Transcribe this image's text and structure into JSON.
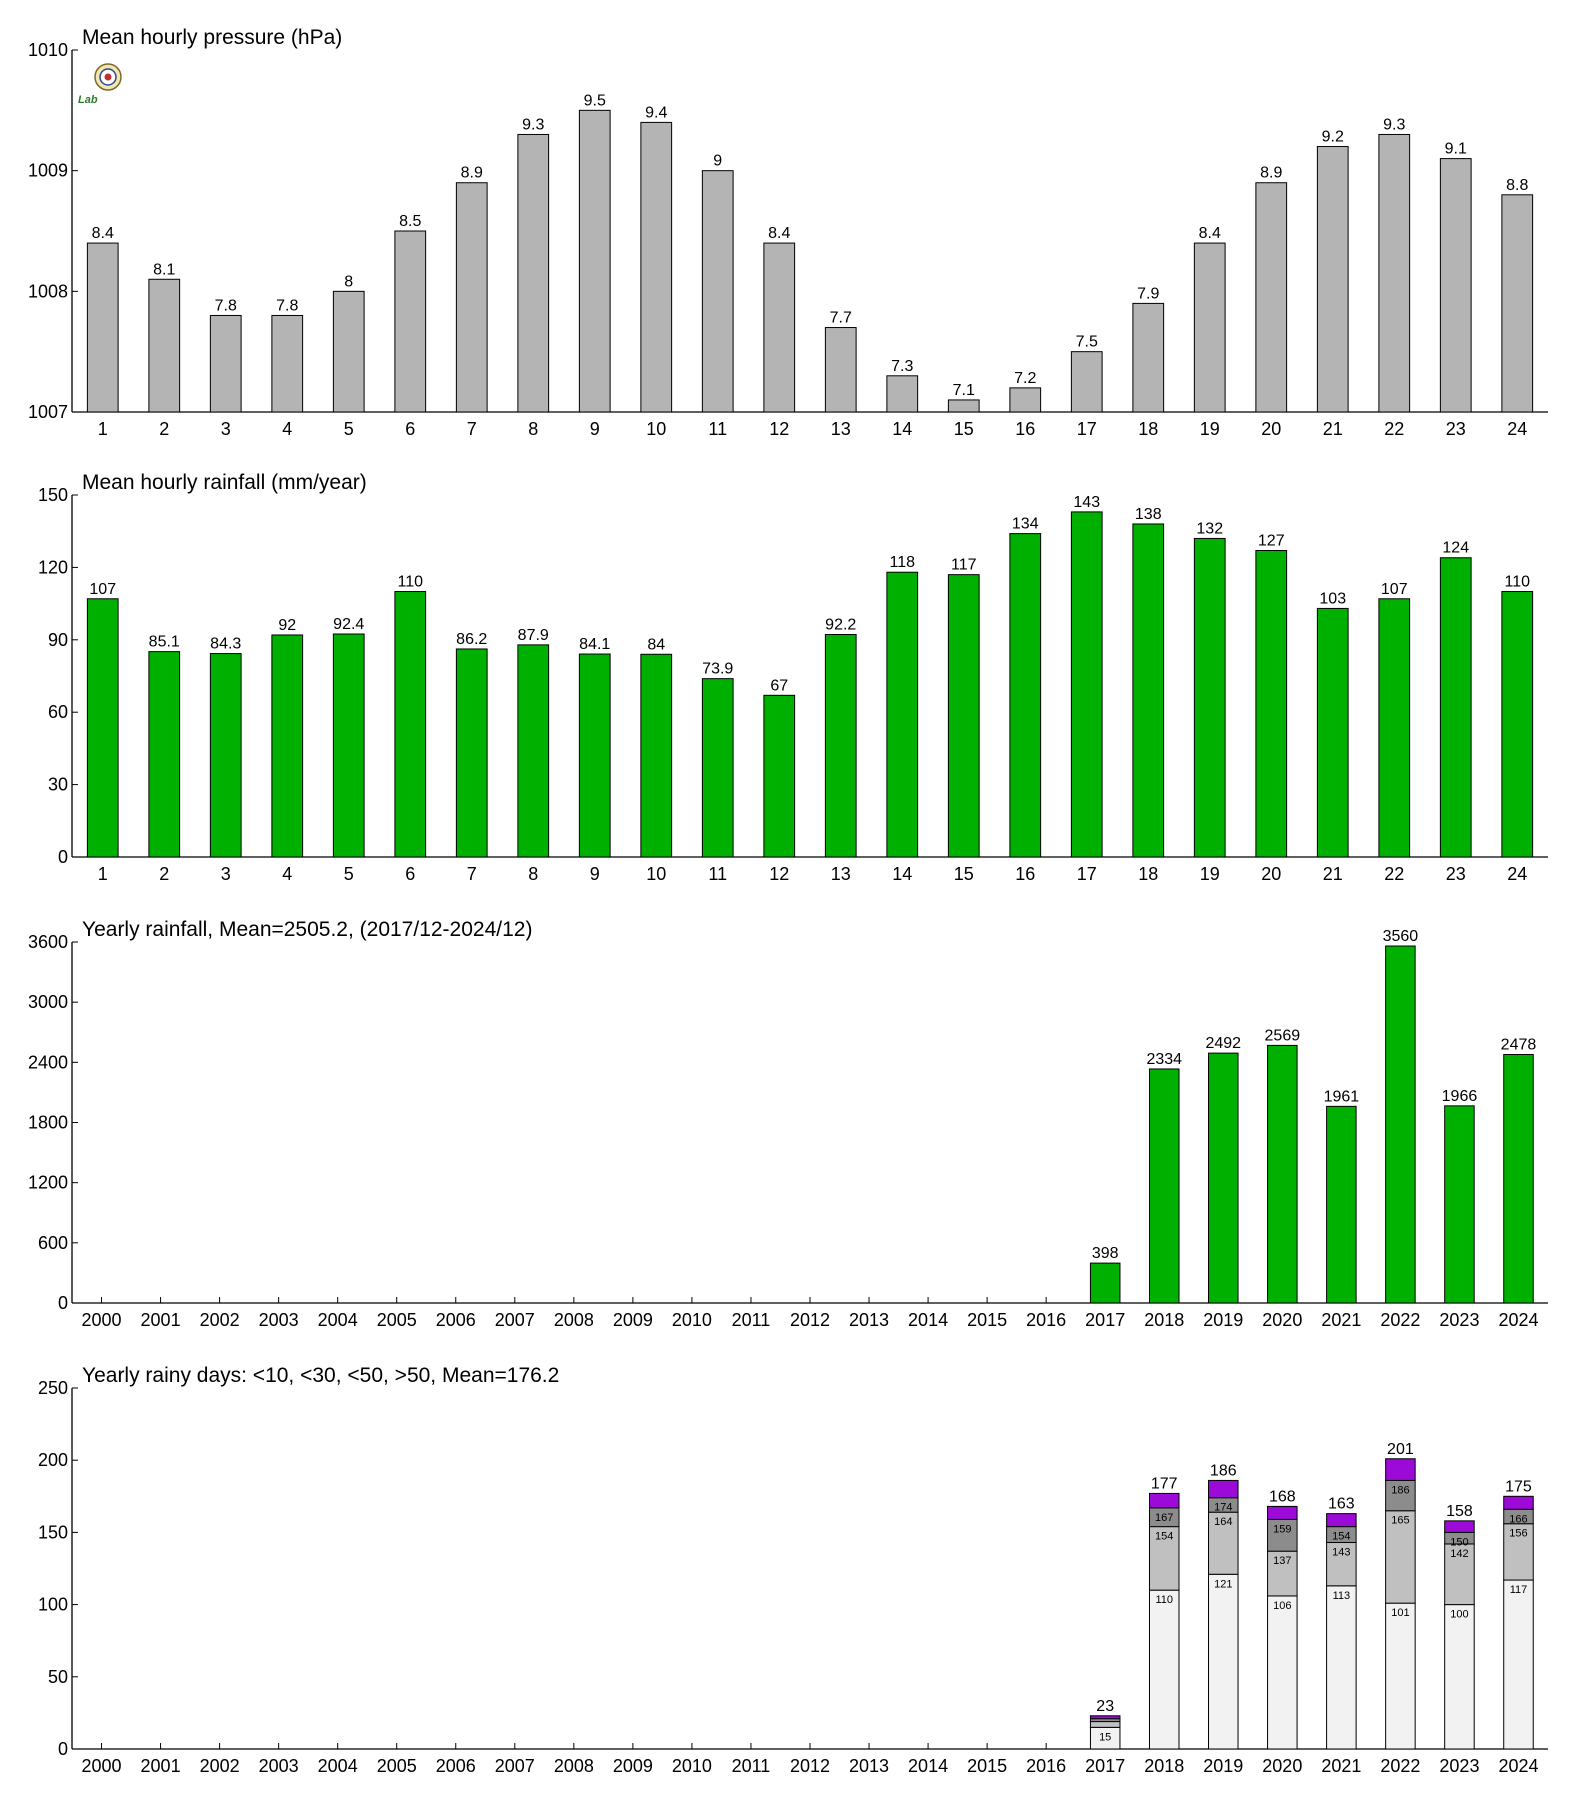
{
  "logo": {
    "label": "Lab",
    "icon": "station-logo-icon"
  },
  "colors": {
    "pressure": "#b4b4b4",
    "rainfall": "#00b000",
    "days_lt10": "#f2f2f2",
    "days_lt30": "#c0c0c0",
    "days_lt50": "#8c8c8c",
    "days_gt50": "#9b0ad6",
    "axis": "#000000"
  },
  "chart_data": [
    {
      "type": "bar",
      "title": "Mean hourly pressure (hPa)",
      "categories": [
        "1",
        "2",
        "3",
        "4",
        "5",
        "6",
        "7",
        "8",
        "9",
        "10",
        "11",
        "12",
        "13",
        "14",
        "15",
        "16",
        "17",
        "18",
        "19",
        "20",
        "21",
        "22",
        "23",
        "24"
      ],
      "values": [
        1008.4,
        1008.1,
        1007.8,
        1007.8,
        1008.0,
        1008.5,
        1008.9,
        1009.3,
        1009.5,
        1009.4,
        1009.0,
        1008.4,
        1007.7,
        1007.3,
        1007.1,
        1007.2,
        1007.5,
        1007.9,
        1008.4,
        1008.9,
        1009.2,
        1009.3,
        1009.1,
        1008.8
      ],
      "value_labels": [
        "8.4",
        "8.1",
        "7.8",
        "7.8",
        "8",
        "8.5",
        "8.9",
        "9.3",
        "9.5",
        "9.4",
        "9",
        "8.4",
        "7.7",
        "7.3",
        "7.1",
        "7.2",
        "7.5",
        "7.9",
        "8.4",
        "8.9",
        "9.2",
        "9.3",
        "9.1",
        "8.8"
      ],
      "ylim": [
        1007,
        1010
      ],
      "yticks": [
        "1007",
        "1008",
        "1009",
        "1010"
      ],
      "grid": false
    },
    {
      "type": "bar",
      "title": "Mean hourly rainfall (mm/year)",
      "categories": [
        "1",
        "2",
        "3",
        "4",
        "5",
        "6",
        "7",
        "8",
        "9",
        "10",
        "11",
        "12",
        "13",
        "14",
        "15",
        "16",
        "17",
        "18",
        "19",
        "20",
        "21",
        "22",
        "23",
        "24"
      ],
      "values": [
        107,
        85.1,
        84.3,
        92,
        92.4,
        110,
        86.2,
        87.9,
        84.1,
        84,
        73.9,
        67,
        92.2,
        118,
        117,
        134,
        143,
        138,
        132,
        127,
        103,
        107,
        124,
        110
      ],
      "value_labels": [
        "107",
        "85.1",
        "84.3",
        "92",
        "92.4",
        "110",
        "86.2",
        "87.9",
        "84.1",
        "84",
        "73.9",
        "67",
        "92.2",
        "118",
        "117",
        "134",
        "143",
        "138",
        "132",
        "127",
        "103",
        "107",
        "124",
        "110"
      ],
      "ylim": [
        0,
        150
      ],
      "yticks": [
        "0",
        "30",
        "60",
        "90",
        "120",
        "150"
      ],
      "grid": false
    },
    {
      "type": "bar",
      "title": "Yearly rainfall, Mean=2505.2, (2017/12-2024/12)",
      "categories": [
        "2000",
        "2001",
        "2002",
        "2003",
        "2004",
        "2005",
        "2006",
        "2007",
        "2008",
        "2009",
        "2010",
        "2011",
        "2012",
        "2013",
        "2014",
        "2015",
        "2016",
        "2017",
        "2018",
        "2019",
        "2020",
        "2021",
        "2022",
        "2023",
        "2024"
      ],
      "values": [
        null,
        null,
        null,
        null,
        null,
        null,
        null,
        null,
        null,
        null,
        null,
        null,
        null,
        null,
        null,
        null,
        null,
        398,
        2334,
        2492,
        2569,
        1961,
        3560,
        1966,
        2478
      ],
      "value_labels": [
        "",
        "",
        "",
        "",
        "",
        "",
        "",
        "",
        "",
        "",
        "",
        "",
        "",
        "",
        "",
        "",
        "",
        "398",
        "2334",
        "2492",
        "2569",
        "1961",
        "3560",
        "1966",
        "2478"
      ],
      "ylim": [
        0,
        3600
      ],
      "yticks": [
        "0",
        "600",
        "1200",
        "1800",
        "2400",
        "3000",
        "3600"
      ],
      "grid": false
    },
    {
      "type": "bar",
      "stacked": true,
      "title": "Yearly rainy days: <10, <30, <50, >50, Mean=176.2",
      "categories": [
        "2000",
        "2001",
        "2002",
        "2003",
        "2004",
        "2005",
        "2006",
        "2007",
        "2008",
        "2009",
        "2010",
        "2011",
        "2012",
        "2013",
        "2014",
        "2015",
        "2016",
        "2017",
        "2018",
        "2019",
        "2020",
        "2021",
        "2022",
        "2023",
        "2024"
      ],
      "cumulative": {
        "lt10": [
          null,
          null,
          null,
          null,
          null,
          null,
          null,
          null,
          null,
          null,
          null,
          null,
          null,
          null,
          null,
          null,
          null,
          15,
          110,
          121,
          106,
          113,
          101,
          100,
          117
        ],
        "lt30": [
          null,
          null,
          null,
          null,
          null,
          null,
          null,
          null,
          null,
          null,
          null,
          null,
          null,
          null,
          null,
          null,
          null,
          19,
          154,
          164,
          137,
          143,
          165,
          142,
          156
        ],
        "lt50": [
          null,
          null,
          null,
          null,
          null,
          null,
          null,
          null,
          null,
          null,
          null,
          null,
          null,
          null,
          null,
          null,
          null,
          21,
          167,
          174,
          159,
          154,
          186,
          150,
          166
        ],
        "total": [
          null,
          null,
          null,
          null,
          null,
          null,
          null,
          null,
          null,
          null,
          null,
          null,
          null,
          null,
          null,
          null,
          null,
          23,
          177,
          186,
          168,
          163,
          201,
          158,
          175
        ]
      },
      "inner_labels": {
        "lt10": [
          "",
          "",
          "",
          "",
          "",
          "",
          "",
          "",
          "",
          "",
          "",
          "",
          "",
          "",
          "",
          "",
          "",
          "15",
          "110",
          "121",
          "106",
          "113",
          "101",
          "100",
          "117"
        ],
        "lt30": [
          "",
          "",
          "",
          "",
          "",
          "",
          "",
          "",
          "",
          "",
          "",
          "",
          "",
          "",
          "",
          "",
          "",
          "",
          "154",
          "164",
          "137",
          "143",
          "165",
          "142",
          "156"
        ],
        "lt50": [
          "",
          "",
          "",
          "",
          "",
          "",
          "",
          "",
          "",
          "",
          "",
          "",
          "",
          "",
          "",
          "",
          "",
          "",
          "167",
          "174",
          "159",
          "154",
          "186",
          "150",
          "166"
        ]
      },
      "total_labels": [
        "",
        "",
        "",
        "",
        "",
        "",
        "",
        "",
        "",
        "",
        "",
        "",
        "",
        "",
        "",
        "",
        "",
        "23",
        "177",
        "186",
        "168",
        "163",
        "201",
        "158",
        "175"
      ],
      "ylim": [
        0,
        250
      ],
      "yticks": [
        "0",
        "50",
        "100",
        "150",
        "200",
        "250"
      ],
      "grid": false
    }
  ]
}
